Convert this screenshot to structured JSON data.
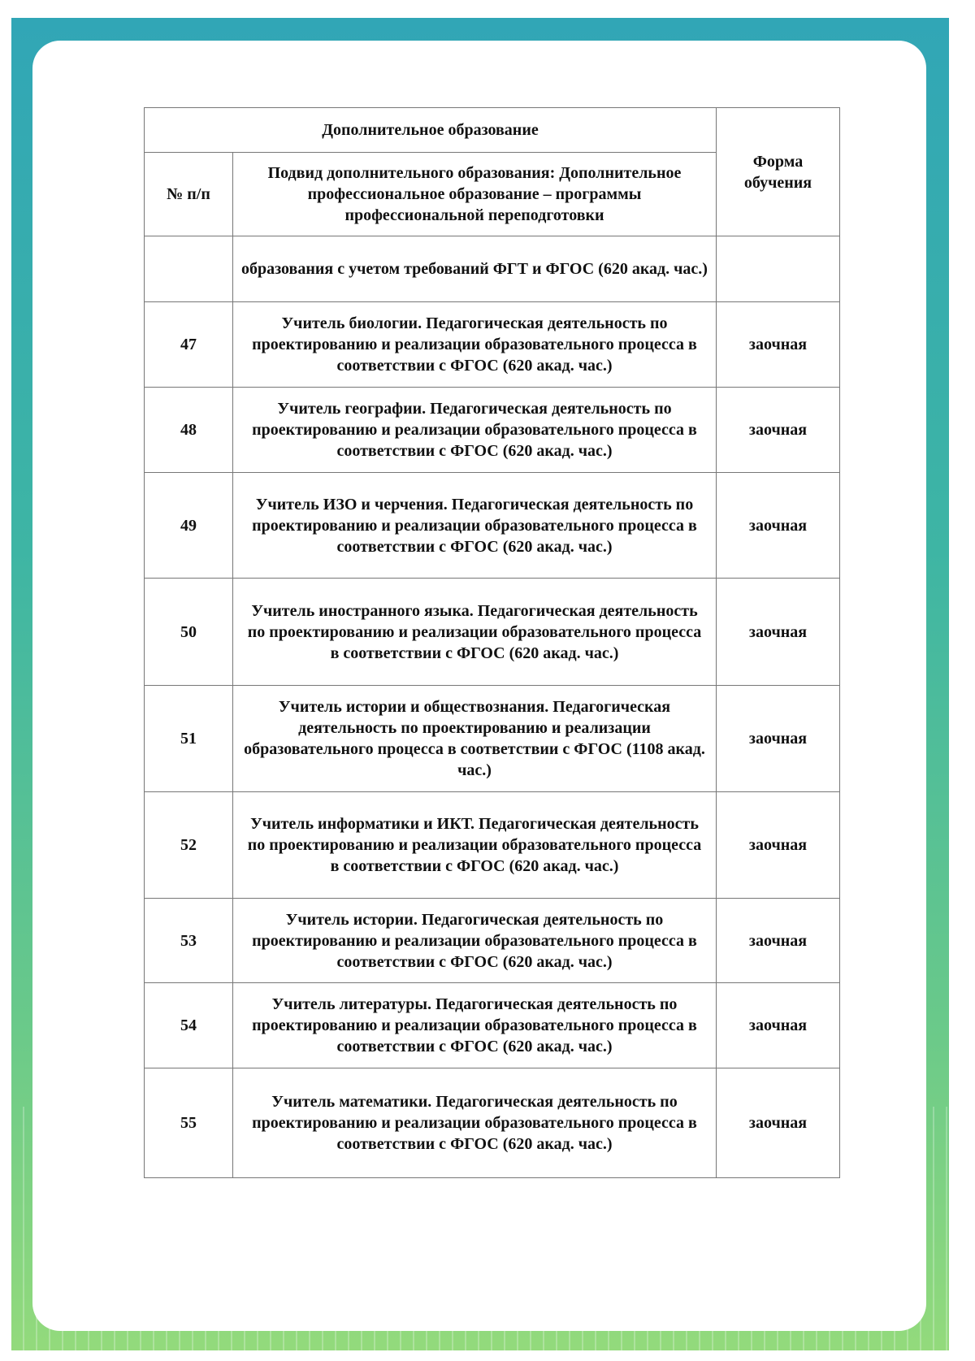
{
  "header": {
    "section": "Дополнительное образование",
    "num_col": "№ п/п",
    "subtype": "Подвид дополнительного образования: Дополнительное профессиональное образование – программы профессиональной переподготовки",
    "form_col": "Форма обучения"
  },
  "continuation": "образования с учетом требований ФГТ и ФГОС (620 акад. час.)",
  "rows": [
    {
      "num": "47",
      "name": "Учитель биологии. Педагогическая деятельность по проектированию и реализации образовательного процесса в соответствии с ФГОС (620 акад. час.)",
      "form": "заочная"
    },
    {
      "num": "48",
      "name": "Учитель географии. Педагогическая деятельность по проектированию и реализации образовательного процесса в соответствии с ФГОС (620 акад. час.)",
      "form": "заочная"
    },
    {
      "num": "49",
      "name": "Учитель ИЗО и черчения. Педагогическая деятельность по проектированию и реализации образовательного процесса в соответствии с ФГОС (620 акад. час.)",
      "form": "заочная"
    },
    {
      "num": "50",
      "name": "Учитель иностранного языка. Педагогическая деятельность по проектированию и реализации образовательного процесса в соответствии с ФГОС (620 акад. час.)",
      "form": "заочная"
    },
    {
      "num": "51",
      "name": "Учитель истории и обществознания. Педагогическая деятельность по проектированию и реализации образовательного процесса в соответствии с ФГОС (1108 акад. час.)",
      "form": "заочная"
    },
    {
      "num": "52",
      "name": "Учитель информатики и ИКТ. Педагогическая деятельность по проектированию и реализации образовательного процесса в соответствии с ФГОС (620 акад. час.)",
      "form": "заочная"
    },
    {
      "num": "53",
      "name": "Учитель истории. Педагогическая деятельность по проектированию и реализации образовательного процесса в соответствии с ФГОС (620 акад. час.)",
      "form": "заочная"
    },
    {
      "num": "54",
      "name": "Учитель литературы. Педагогическая деятельность по проектированию и реализации образовательного процесса в соответствии с ФГОС (620 акад. час.)",
      "form": "заочная"
    },
    {
      "num": "55",
      "name": "Учитель математики. Педагогическая деятельность по проектированию и реализации образовательного процесса в соответствии с ФГОС (620 акад. час.)",
      "form": "заочная"
    }
  ]
}
